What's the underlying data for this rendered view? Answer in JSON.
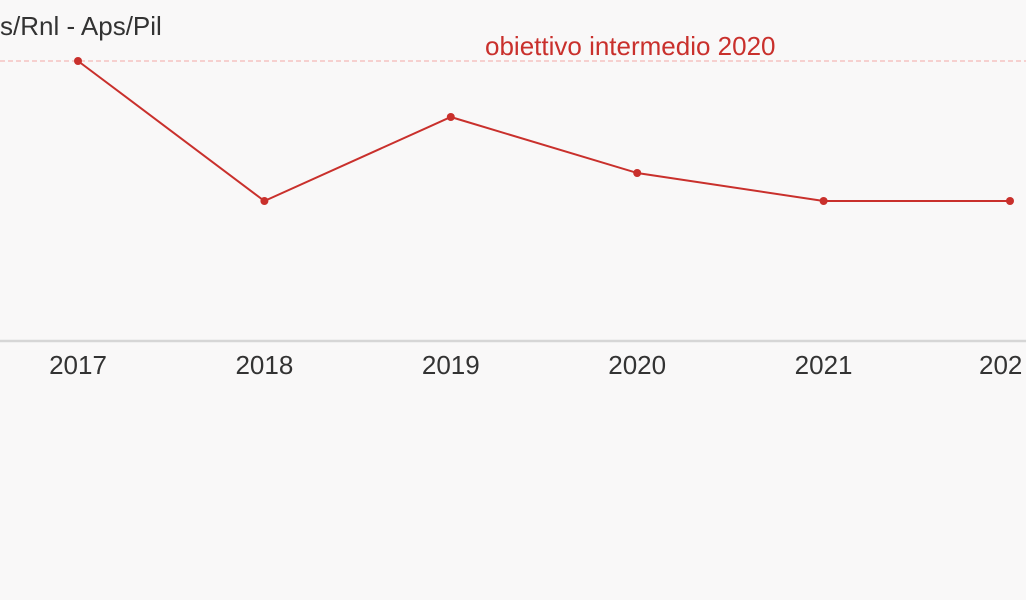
{
  "chart_data": {
    "type": "line",
    "title": "s/Rnl - Aps/Pil",
    "xlabel": "",
    "ylabel": "",
    "categories": [
      "2017",
      "2018",
      "2019",
      "2020",
      "2021",
      "202"
    ],
    "series": [
      {
        "values": [
          0.3,
          0.25,
          0.28,
          0.26,
          0.25,
          0.25
        ]
      }
    ],
    "ylim": [
      0.2,
      0.3
    ],
    "reference_line": {
      "label": "obiettivo intermedio 2020",
      "value": 0.3
    },
    "grid": false,
    "legend": "none",
    "colors": {
      "series": "#c9302c",
      "reference_line": "#f4b8b6",
      "text": "#333333",
      "axis": "#d6d6d6",
      "background": "#f9f8f8"
    }
  }
}
